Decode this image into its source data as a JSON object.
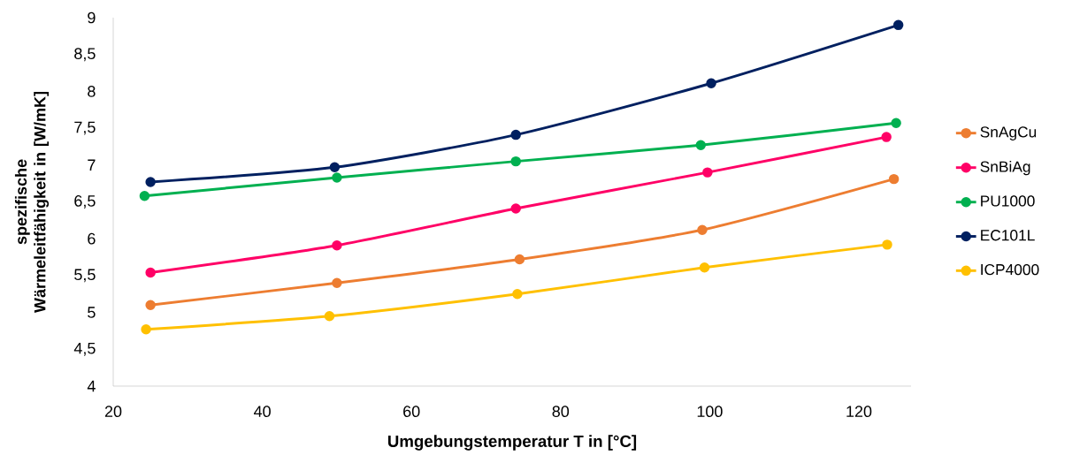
{
  "chart_data": {
    "type": "line",
    "xlabel": "Umgebungstemperatur T in [°C]",
    "ylabel": "spezifische Wärmeleitfähigkeit in [W/mK]",
    "series": [
      {
        "name": "SnAgCu",
        "color": "#ed7d31",
        "x": [
          25,
          50,
          74.5,
          99,
          124.7
        ],
        "values": [
          5.1,
          5.4,
          5.72,
          6.12,
          6.81
        ]
      },
      {
        "name": "SnBiAg",
        "color": "#ff0066",
        "x": [
          25,
          50,
          74,
          99.7,
          123.7
        ],
        "values": [
          5.54,
          5.91,
          6.41,
          6.9,
          7.38
        ]
      },
      {
        "name": "PU1000",
        "color": "#00b050",
        "x": [
          24.2,
          50,
          74,
          98.8,
          125
        ],
        "values": [
          6.58,
          6.83,
          7.05,
          7.27,
          7.57
        ]
      },
      {
        "name": "EC101L",
        "color": "#002060",
        "x": [
          25,
          49.7,
          74,
          100.2,
          125.3
        ],
        "values": [
          6.77,
          6.97,
          7.41,
          8.11,
          8.9
        ]
      },
      {
        "name": "ICP4000",
        "color": "#ffc000",
        "x": [
          24.4,
          49,
          74.2,
          99.3,
          123.8
        ],
        "values": [
          4.77,
          4.95,
          5.25,
          5.61,
          5.92
        ]
      }
    ],
    "xlim": [
      20,
      127
    ],
    "xticks": [
      20,
      40,
      60,
      80,
      100,
      120
    ],
    "ylim": [
      4,
      9
    ],
    "yticks": [
      4,
      {
        "value": 4.5,
        "label": "4,5"
      },
      5,
      {
        "value": 5.5,
        "label": "5,5"
      },
      6,
      {
        "value": 6.5,
        "label": "6,5"
      },
      7,
      {
        "value": 7.5,
        "label": "7,5"
      },
      8,
      {
        "value": 8.5,
        "label": "8,5"
      },
      9
    ],
    "grid": false,
    "legend": "right",
    "marker": "circle",
    "line_style": "solid"
  }
}
